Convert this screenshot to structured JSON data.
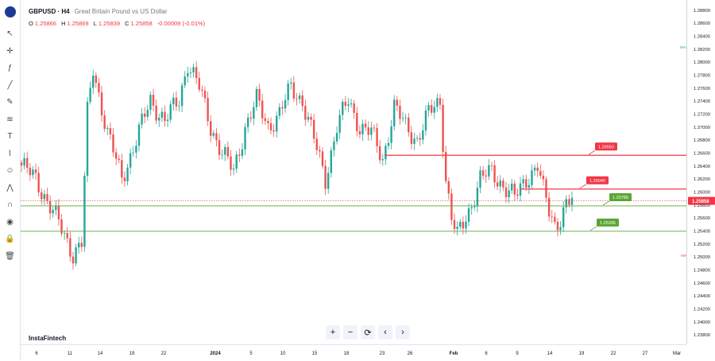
{
  "header": {
    "symbol": "GBPUSD · H4",
    "description": "Great Britain Pound vs US Dollar",
    "ohlc": [
      {
        "key": "O",
        "value": "1.25866"
      },
      {
        "key": "H",
        "value": "1.25869"
      },
      {
        "key": "L",
        "value": "1.25839"
      },
      {
        "key": "C",
        "value": "1.25858"
      }
    ],
    "change": "-0.00009 (-0.01%)"
  },
  "branding": "InstaFintech",
  "toolbar_icons": [
    "flag-icon",
    "cursor-icon",
    "crosshair-icon",
    "fx-icon",
    "trendline-icon",
    "pen-icon",
    "fib-icon",
    "text-icon",
    "brush-icon",
    "emoji-icon",
    "pattern-icon",
    "magnet-icon",
    "eye-icon",
    "lock-icon",
    "trash-icon"
  ],
  "nav_buttons": [
    "+",
    "−",
    "⟳",
    "‹",
    "›"
  ],
  "colors": {
    "up": "#26a69a",
    "down": "#ef5350",
    "resistance": "#f23645",
    "support": "#5aa634",
    "current": "#f23645"
  },
  "chart_data": {
    "type": "candlestick",
    "ylim": [
      1.2365,
      1.2895
    ],
    "y_ticks": [
      "1.28800",
      "1.28600",
      "1.28400",
      "1.28200",
      "1.28000",
      "1.27800",
      "1.27600",
      "1.27400",
      "1.27200",
      "1.27000",
      "1.26800",
      "1.26600",
      "1.26400",
      "1.26200",
      "1.26000",
      "1.25800",
      "1.25600",
      "1.25400",
      "1.25200",
      "1.25000",
      "1.24800",
      "1.24600",
      "1.24400",
      "1.24200",
      "1.24000",
      "1.23800"
    ],
    "x_ticks": [
      "6",
      "11",
      "14",
      "19",
      "22",
      "2024",
      "5",
      "10",
      "15",
      "18",
      "23",
      "26",
      "Feb",
      "6",
      "9",
      "14",
      "19",
      "22",
      "27",
      "Mar"
    ],
    "current_price": "1.25858",
    "max_label": "MAX",
    "min_label": "MIN",
    "max_price": 1.2823,
    "min_price": 1.2502,
    "levels": [
      {
        "label": "1.26560",
        "price": 1.2656,
        "kind": "resistance"
      },
      {
        "label": "1.26040",
        "price": 1.2604,
        "kind": "resistance"
      },
      {
        "label": "1.25786",
        "price": 1.2578,
        "kind": "support"
      },
      {
        "label": "1.25396",
        "price": 1.2539,
        "kind": "support"
      }
    ],
    "anchors": [
      [
        0,
        1.264
      ],
      [
        5,
        1.262
      ],
      [
        12,
        1.256
      ],
      [
        18,
        1.2505
      ],
      [
        21,
        1.252
      ],
      [
        23,
        1.272
      ],
      [
        25,
        1.279
      ],
      [
        30,
        1.269
      ],
      [
        35,
        1.262
      ],
      [
        40,
        1.268
      ],
      [
        45,
        1.274
      ],
      [
        50,
        1.271
      ],
      [
        55,
        1.274
      ],
      [
        58,
        1.28
      ],
      [
        62,
        1.276
      ],
      [
        66,
        1.27
      ],
      [
        70,
        1.266
      ],
      [
        74,
        1.263
      ],
      [
        78,
        1.27
      ],
      [
        82,
        1.274
      ],
      [
        86,
        1.27
      ],
      [
        90,
        1.272
      ],
      [
        94,
        1.276
      ],
      [
        98,
        1.274
      ],
      [
        102,
        1.268
      ],
      [
        106,
        1.262
      ],
      [
        110,
        1.27
      ],
      [
        114,
        1.274
      ],
      [
        118,
        1.27
      ],
      [
        122,
        1.269
      ],
      [
        126,
        1.265
      ],
      [
        130,
        1.273
      ],
      [
        134,
        1.27
      ],
      [
        138,
        1.268
      ],
      [
        142,
        1.272
      ],
      [
        146,
        1.274
      ],
      [
        148,
        1.262
      ],
      [
        150,
        1.256
      ],
      [
        152,
        1.253
      ],
      [
        156,
        1.257
      ],
      [
        160,
        1.262
      ],
      [
        164,
        1.263
      ],
      [
        168,
        1.261
      ],
      [
        172,
        1.259
      ],
      [
        176,
        1.262
      ],
      [
        180,
        1.264
      ],
      [
        182,
        1.26
      ],
      [
        184,
        1.257
      ],
      [
        186,
        1.255
      ],
      [
        188,
        1.256
      ],
      [
        190,
        1.258
      ],
      [
        192,
        1.2586
      ]
    ]
  }
}
